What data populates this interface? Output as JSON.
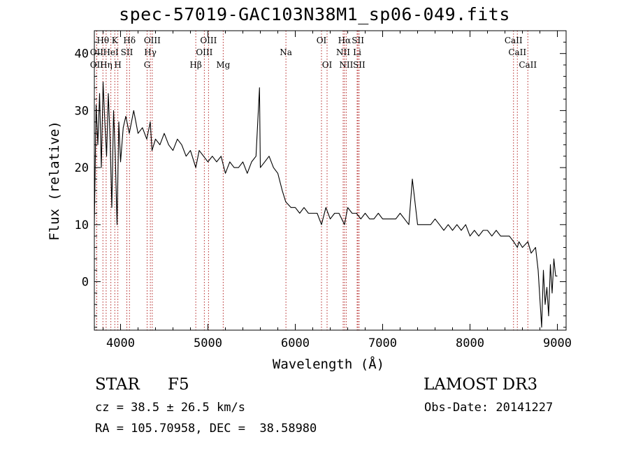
{
  "chart_data": {
    "type": "line",
    "title": "spec-57019-GAC103N38M1_sp06-049.fits",
    "xlabel": "Wavelength (Å)",
    "ylabel": "Flux (relative)",
    "xlim": [
      3700,
      9100
    ],
    "ylim": [
      -8.5,
      44
    ],
    "xticks": [
      4000,
      5000,
      6000,
      7000,
      8000,
      9000
    ],
    "yticks": [
      0,
      10,
      20,
      30,
      40
    ],
    "series": [
      {
        "name": "spectrum",
        "x": [
          3700,
          3720,
          3740,
          3760,
          3780,
          3800,
          3820,
          3840,
          3860,
          3880,
          3900,
          3920,
          3940,
          3960,
          3980,
          4000,
          4030,
          4060,
          4100,
          4150,
          4200,
          4250,
          4300,
          4340,
          4360,
          4400,
          4450,
          4500,
          4550,
          4600,
          4650,
          4700,
          4750,
          4800,
          4861,
          4900,
          4950,
          5000,
          5050,
          5100,
          5150,
          5200,
          5250,
          5300,
          5350,
          5400,
          5450,
          5500,
          5550,
          5590,
          5600,
          5650,
          5700,
          5750,
          5800,
          5850,
          5890,
          5950,
          6000,
          6050,
          6100,
          6150,
          6200,
          6250,
          6300,
          6350,
          6400,
          6450,
          6500,
          6563,
          6600,
          6650,
          6700,
          6750,
          6800,
          6850,
          6900,
          6950,
          7000,
          7050,
          7100,
          7150,
          7200,
          7250,
          7300,
          7340,
          7400,
          7450,
          7500,
          7550,
          7600,
          7650,
          7700,
          7750,
          7800,
          7850,
          7900,
          7950,
          8000,
          8050,
          8100,
          8150,
          8200,
          8250,
          8300,
          8350,
          8400,
          8450,
          8500,
          8542,
          8560,
          8600,
          8662,
          8700,
          8750,
          8780,
          8800,
          8820,
          8840,
          8860,
          8880,
          8900,
          8920,
          8940,
          8960,
          8980,
          9000
        ],
        "y": [
          10,
          31,
          24,
          33,
          20,
          35,
          28,
          22,
          33,
          25,
          13,
          30,
          22,
          10,
          28,
          21,
          27,
          29,
          26,
          30,
          26,
          27,
          25,
          28,
          23,
          25,
          24,
          26,
          24,
          23,
          25,
          24,
          22,
          23,
          20,
          23,
          22,
          21,
          22,
          21,
          22,
          19,
          21,
          20,
          20,
          21,
          19,
          21,
          22,
          34,
          20,
          21,
          22,
          20,
          19,
          16,
          14,
          13,
          13,
          12,
          13,
          12,
          12,
          12,
          10,
          13,
          11,
          12,
          12,
          10,
          13,
          12,
          12,
          11,
          12,
          11,
          11,
          12,
          11,
          11,
          11,
          11,
          12,
          11,
          10,
          18,
          10,
          10,
          10,
          10,
          11,
          10,
          9,
          10,
          9,
          10,
          9,
          10,
          8,
          9,
          8,
          9,
          9,
          8,
          9,
          8,
          8,
          8,
          7,
          6,
          7,
          6,
          7,
          5,
          6,
          2,
          -3,
          -8,
          2,
          -4,
          -1,
          -6,
          3,
          -2,
          4,
          1,
          1
        ]
      }
    ],
    "lines": [
      {
        "name": "OII",
        "wl": 3727,
        "row": 3
      },
      {
        "name": "Hθ",
        "wl": 3798,
        "row": 1
      },
      {
        "name": "OII",
        "wl": 3727,
        "row": 2
      },
      {
        "name": "Hη",
        "wl": 3835,
        "row": 3
      },
      {
        "name": "HeI",
        "wl": 3889,
        "row": 2
      },
      {
        "name": "K",
        "wl": 3934,
        "row": 1
      },
      {
        "name": "H",
        "wl": 3969,
        "row": 3
      },
      {
        "name": "SII",
        "wl": 4072,
        "row": 2
      },
      {
        "name": "Hδ",
        "wl": 4102,
        "row": 1
      },
      {
        "name": "G",
        "wl": 4304,
        "row": 3
      },
      {
        "name": "OIII",
        "wl": 4363,
        "row": 1
      },
      {
        "name": "Hγ",
        "wl": 4341,
        "row": 2
      },
      {
        "name": "Hβ",
        "wl": 4861,
        "row": 3
      },
      {
        "name": "OIII",
        "wl": 4959,
        "row": 2
      },
      {
        "name": "OIII",
        "wl": 5007,
        "row": 1
      },
      {
        "name": "Mg",
        "wl": 5175,
        "row": 3
      },
      {
        "name": "Na",
        "wl": 5893,
        "row": 2
      },
      {
        "name": "OI",
        "wl": 6300,
        "row": 1
      },
      {
        "name": "OI",
        "wl": 6364,
        "row": 3
      },
      {
        "name": "NII",
        "wl": 6548,
        "row": 2
      },
      {
        "name": "Hα",
        "wl": 6563,
        "row": 1
      },
      {
        "name": "NII",
        "wl": 6583,
        "row": 3
      },
      {
        "name": "SII",
        "wl": 6717,
        "row": 1
      },
      {
        "name": "Li",
        "wl": 6708,
        "row": 2
      },
      {
        "name": "SII",
        "wl": 6731,
        "row": 3
      },
      {
        "name": "CaII",
        "wl": 8498,
        "row": 1
      },
      {
        "name": "CaII",
        "wl": 8542,
        "row": 2
      },
      {
        "name": "CaII",
        "wl": 8662,
        "row": 3
      }
    ]
  },
  "info": {
    "class_label": "STAR",
    "subclass": "F5",
    "survey": "LAMOST DR3",
    "cz": "cz = 38.5 ± 26.5 km/s",
    "obs_date": "Obs-Date: 20141227",
    "radec": "RA = 105.70958, DEC =  38.58980"
  }
}
